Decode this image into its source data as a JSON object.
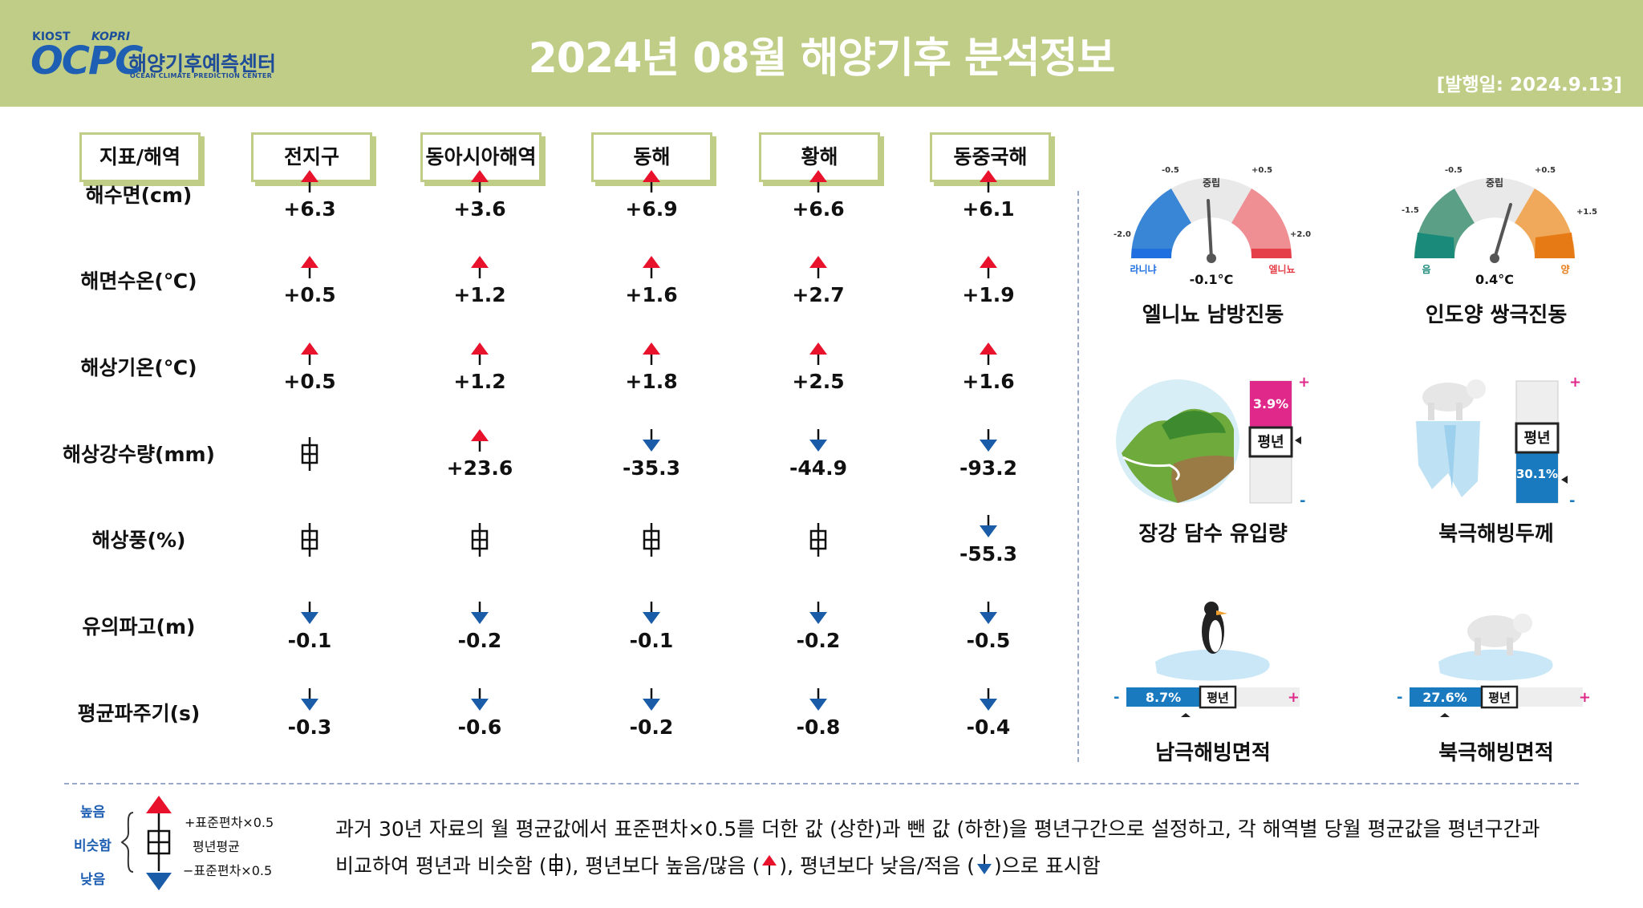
{
  "header": {
    "logo_top_left": "KIOST",
    "logo_top_right": "KOPRI",
    "logo_main": "OCPC",
    "logo_kr": "해양기후예측센터",
    "logo_en": "OCEAN CLIMATE PREDICTION CENTER",
    "title": "2024년 08월 해양기후 분석정보",
    "pub_date": "[발행일: 2024.9.13]"
  },
  "colors": {
    "header_bg": "#c0cd86",
    "up": "#e8122c",
    "down": "#1a5ca8"
  },
  "table": {
    "corner": "지표/해역",
    "columns": [
      "전지구",
      "동아시아해역",
      "동해",
      "황해",
      "동중국해"
    ],
    "rows": [
      {
        "label": "해수면(cm)",
        "cells": [
          {
            "s": "up",
            "v": "+6.3"
          },
          {
            "s": "up",
            "v": "+3.6"
          },
          {
            "s": "up",
            "v": "+6.9"
          },
          {
            "s": "up",
            "v": "+6.6"
          },
          {
            "s": "up",
            "v": "+6.1"
          }
        ]
      },
      {
        "label": "해면수온(℃)",
        "cells": [
          {
            "s": "up",
            "v": "+0.5"
          },
          {
            "s": "up",
            "v": "+1.2"
          },
          {
            "s": "up",
            "v": "+1.6"
          },
          {
            "s": "up",
            "v": "+2.7"
          },
          {
            "s": "up",
            "v": "+1.9"
          }
        ]
      },
      {
        "label": "해상기온(℃)",
        "cells": [
          {
            "s": "up",
            "v": "+0.5"
          },
          {
            "s": "up",
            "v": "+1.2"
          },
          {
            "s": "up",
            "v": "+1.8"
          },
          {
            "s": "up",
            "v": "+2.5"
          },
          {
            "s": "up",
            "v": "+1.6"
          }
        ]
      },
      {
        "label": "해상강수량(mm)",
        "cells": [
          {
            "s": "normal",
            "v": ""
          },
          {
            "s": "up",
            "v": "+23.6"
          },
          {
            "s": "down",
            "v": "-35.3"
          },
          {
            "s": "down",
            "v": "-44.9"
          },
          {
            "s": "down",
            "v": "-93.2"
          }
        ]
      },
      {
        "label": "해상풍(%)",
        "cells": [
          {
            "s": "normal",
            "v": ""
          },
          {
            "s": "normal",
            "v": ""
          },
          {
            "s": "normal",
            "v": ""
          },
          {
            "s": "normal",
            "v": ""
          },
          {
            "s": "down",
            "v": "-55.3"
          }
        ]
      },
      {
        "label": "유의파고(m)",
        "cells": [
          {
            "s": "down",
            "v": "-0.1"
          },
          {
            "s": "down",
            "v": "-0.2"
          },
          {
            "s": "down",
            "v": "-0.1"
          },
          {
            "s": "down",
            "v": "-0.2"
          },
          {
            "s": "down",
            "v": "-0.5"
          }
        ]
      },
      {
        "label": "평균파주기(s)",
        "cells": [
          {
            "s": "down",
            "v": "-0.3"
          },
          {
            "s": "down",
            "v": "-0.6"
          },
          {
            "s": "down",
            "v": "-0.2"
          },
          {
            "s": "down",
            "v": "-0.8"
          },
          {
            "s": "down",
            "v": "-0.4"
          }
        ]
      }
    ]
  },
  "enso": {
    "title": "엘니뇨 남방진동",
    "value": "-0.1°C",
    "value_num": -0.1,
    "center": "중립",
    "left_label": "라니냐",
    "right_label": "엘니뇨",
    "ticks": [
      "-2.0",
      "-0.5",
      "+0.5",
      "+2.0"
    ]
  },
  "iod": {
    "title": "인도양 쌍극진동",
    "value": "0.4°C",
    "value_num": 0.4,
    "center": "중립",
    "left_label": "음",
    "right_label": "양",
    "ticks": [
      "-1.5",
      "-0.5",
      "+0.5",
      "+1.5"
    ]
  },
  "yangtze": {
    "title": "장강 담수 유입량",
    "value": "3.9%",
    "normal": "평년",
    "plus": "+",
    "minus": "-",
    "anomaly": 3.9
  },
  "arctic_thickness": {
    "title": "북극해빙두께",
    "value": "30.1%",
    "normal": "평년",
    "plus": "+",
    "minus": "-",
    "anomaly": -30.1
  },
  "antarctic_area": {
    "title": "남극해빙면적",
    "value": "8.7%",
    "normal": "평년",
    "plus": "+",
    "minus": "-",
    "anomaly": -8.7
  },
  "arctic_area": {
    "title": "북극해빙면적",
    "value": "27.6%",
    "normal": "평년",
    "plus": "+",
    "minus": "-",
    "anomaly": -27.6
  },
  "legend": {
    "high": "높음",
    "similar": "비슷함",
    "low": "낮음",
    "plus_sd": "+표준편차×0.5",
    "mean": "평년평균",
    "minus_sd": "−표준편차×0.5"
  },
  "note": {
    "line1": "과거 30년 자료의 월 평균값에서 표준편차×0.5를 더한 값 (상한)과 뺀 값 (하한)을 평년구간으로 설정하고, 각 해역별 당월 평균값을 평년구간과",
    "line2_a": "비교하여 평년과 비슷함 (",
    "line2_b": "), 평년보다 높음/많음 (",
    "line2_c": "), 평년보다 낮음/적음 (",
    "line2_d": ")으로 표시함"
  }
}
